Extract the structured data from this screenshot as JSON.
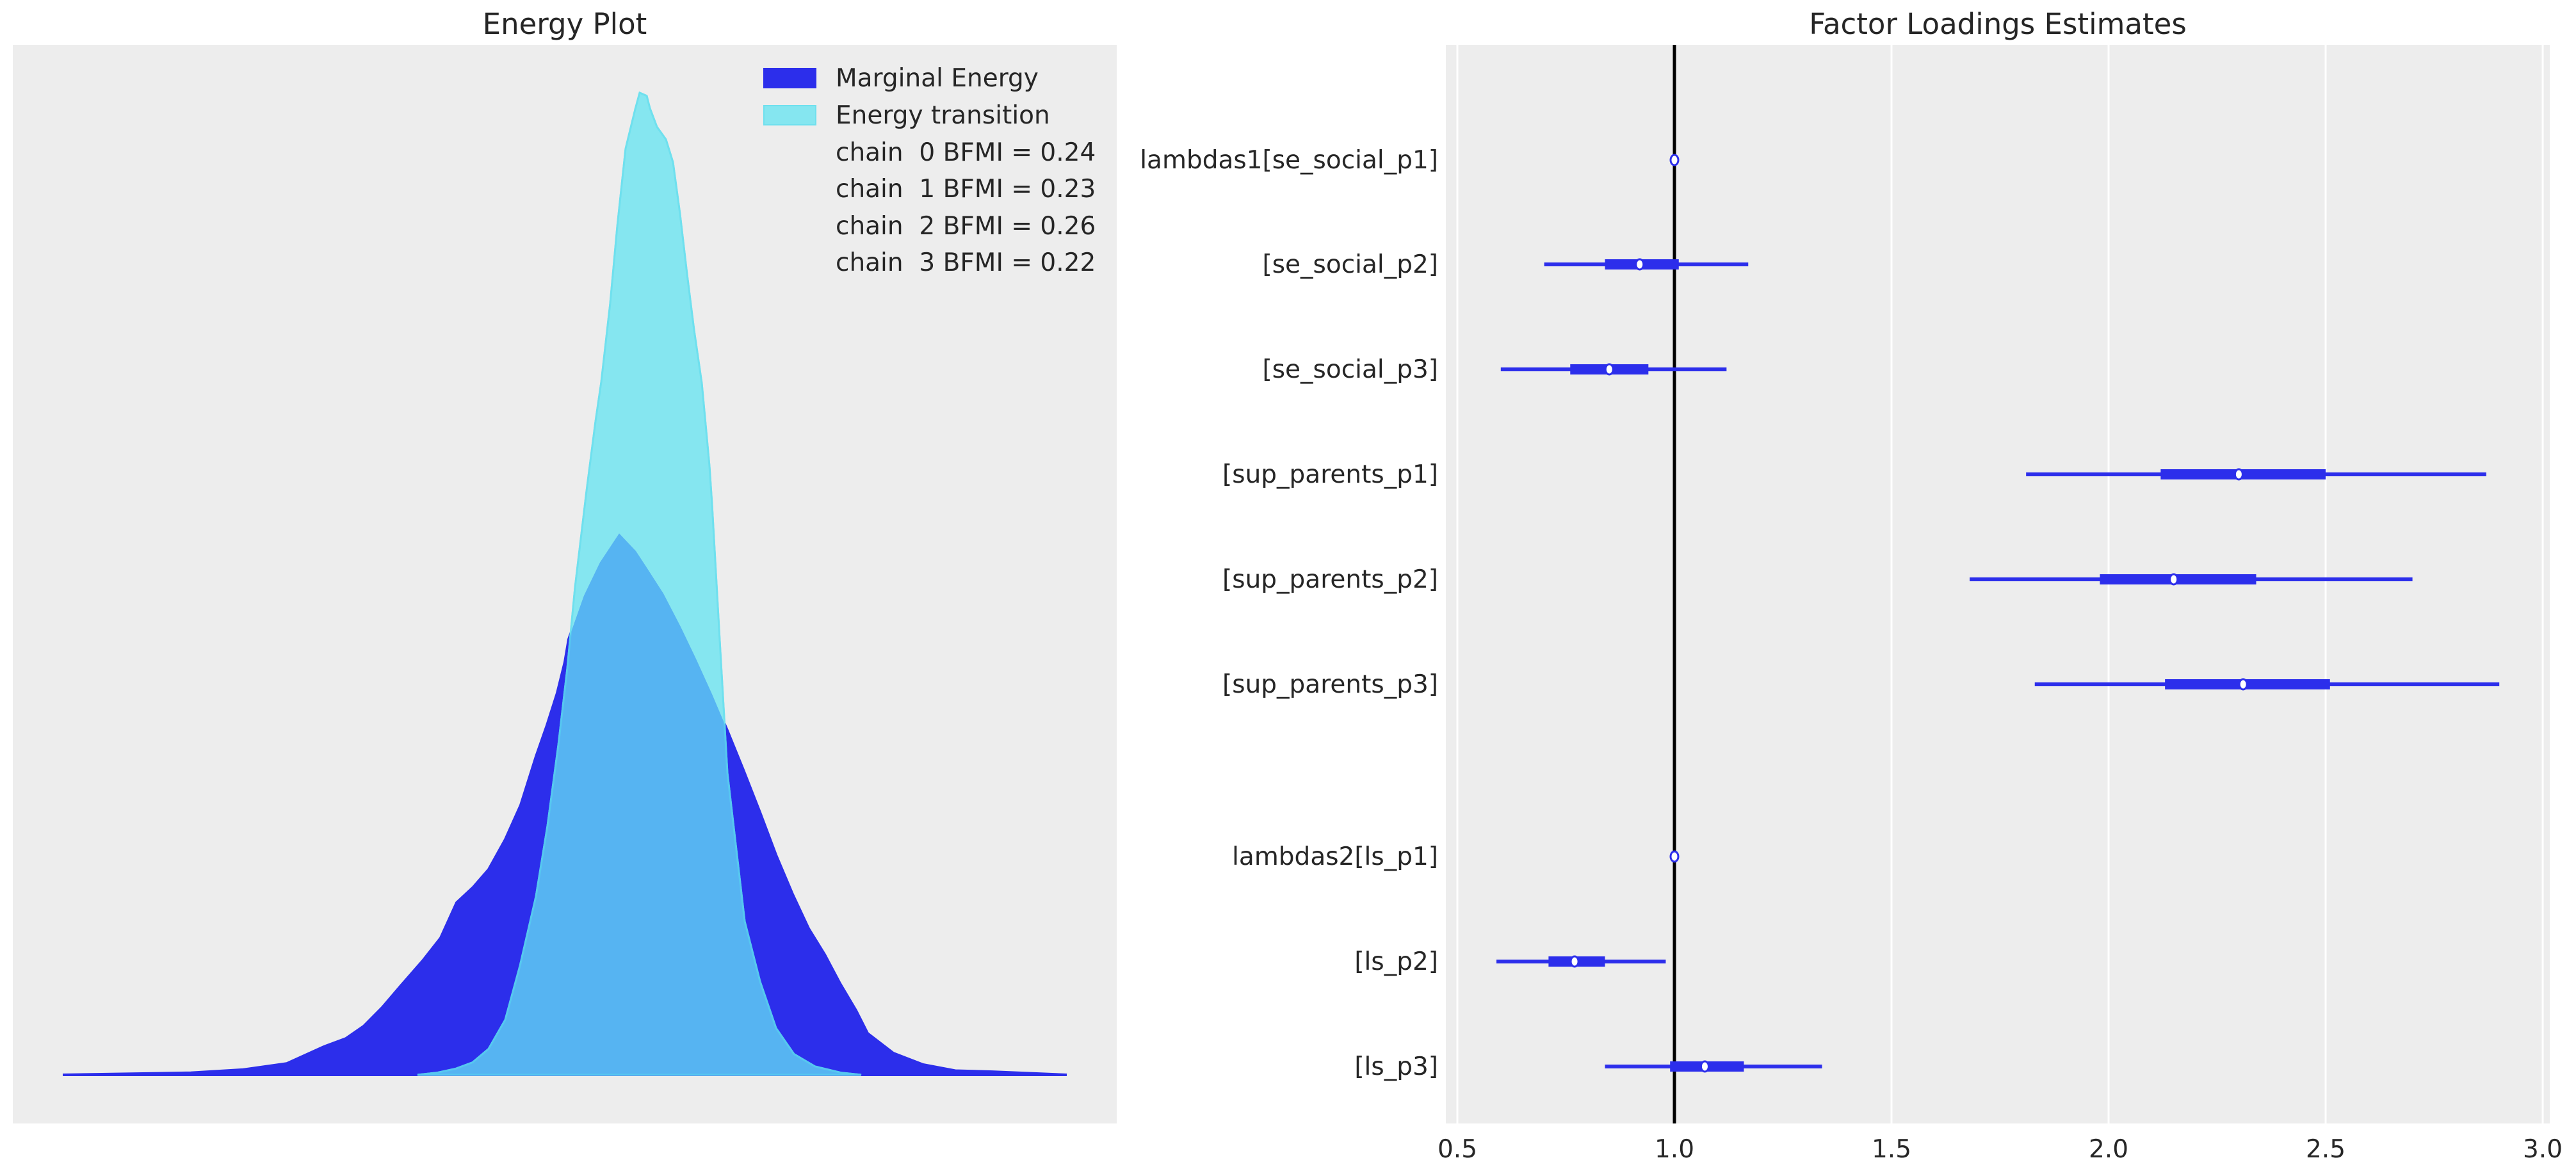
{
  "figure": {
    "background": "#ffffff",
    "axes_background": "#ededed",
    "grid_color": "#ffffff",
    "text_color": "#262626"
  },
  "chart_data": [
    {
      "type": "area",
      "title": "Energy Plot",
      "xlabel": "",
      "ylabel": "",
      "x_axis_visible": false,
      "y_axis_visible": false,
      "grid": false,
      "legend_placement": "top-right",
      "x_units": "energy (centered, arbitrary units)",
      "y_units": "density (relative to transition peak)",
      "series": [
        {
          "name": "Marginal Energy",
          "color": "#2c2eeb",
          "points": [
            [
              -8.84,
              0.0
            ],
            [
              -6.84,
              0.002
            ],
            [
              -6.03,
              0.005
            ],
            [
              -5.34,
              0.011
            ],
            [
              -4.77,
              0.027
            ],
            [
              -4.42,
              0.035
            ],
            [
              -4.14,
              0.047
            ],
            [
              -3.85,
              0.065
            ],
            [
              -3.56,
              0.086
            ],
            [
              -3.22,
              0.11
            ],
            [
              -2.94,
              0.132
            ],
            [
              -2.69,
              0.166
            ],
            [
              -2.43,
              0.181
            ],
            [
              -2.19,
              0.198
            ],
            [
              -1.93,
              0.227
            ],
            [
              -1.69,
              0.26
            ],
            [
              -1.45,
              0.307
            ],
            [
              -1.28,
              0.337
            ],
            [
              -1.12,
              0.368
            ],
            [
              -1.0,
              0.398
            ],
            [
              -0.94,
              0.42
            ],
            [
              -0.7,
              0.462
            ],
            [
              -0.45,
              0.494
            ],
            [
              -0.15,
              0.522
            ],
            [
              0.11,
              0.505
            ],
            [
              0.27,
              0.49
            ],
            [
              0.54,
              0.464
            ],
            [
              0.81,
              0.432
            ],
            [
              1.05,
              0.401
            ],
            [
              1.3,
              0.367
            ],
            [
              1.54,
              0.332
            ],
            [
              1.79,
              0.294
            ],
            [
              2.05,
              0.253
            ],
            [
              2.3,
              0.212
            ],
            [
              2.56,
              0.174
            ],
            [
              2.81,
              0.141
            ],
            [
              3.06,
              0.116
            ],
            [
              3.3,
              0.088
            ],
            [
              3.55,
              0.062
            ],
            [
              3.73,
              0.04
            ],
            [
              4.13,
              0.021
            ],
            [
              4.59,
              0.01
            ],
            [
              5.1,
              0.004
            ],
            [
              5.68,
              0.003
            ],
            [
              6.84,
              0.0
            ]
          ]
        },
        {
          "name": "Energy transition",
          "color": "#85e6f0",
          "points": [
            [
              -3.3,
              0.0
            ],
            [
              -3.0,
              0.002
            ],
            [
              -2.7,
              0.006
            ],
            [
              -2.44,
              0.012
            ],
            [
              -2.19,
              0.025
            ],
            [
              -1.93,
              0.053
            ],
            [
              -1.7,
              0.105
            ],
            [
              -1.45,
              0.172
            ],
            [
              -1.27,
              0.24
            ],
            [
              -1.1,
              0.318
            ],
            [
              -0.96,
              0.392
            ],
            [
              -0.84,
              0.47
            ],
            [
              -0.66,
              0.563
            ],
            [
              -0.52,
              0.63
            ],
            [
              -0.43,
              0.668
            ],
            [
              -0.29,
              0.744
            ],
            [
              -0.18,
              0.818
            ],
            [
              -0.05,
              0.893
            ],
            [
              0.1,
              0.931
            ],
            [
              0.17,
              0.947
            ],
            [
              0.28,
              0.944
            ],
            [
              0.33,
              0.932
            ],
            [
              0.44,
              0.914
            ],
            [
              0.58,
              0.902
            ],
            [
              0.69,
              0.88
            ],
            [
              0.8,
              0.83
            ],
            [
              0.91,
              0.772
            ],
            [
              1.02,
              0.718
            ],
            [
              1.14,
              0.667
            ],
            [
              1.26,
              0.587
            ],
            [
              1.3,
              0.55
            ],
            [
              1.42,
              0.419
            ],
            [
              1.54,
              0.291
            ],
            [
              1.81,
              0.148
            ],
            [
              2.05,
              0.09
            ],
            [
              2.3,
              0.045
            ],
            [
              2.58,
              0.02
            ],
            [
              2.91,
              0.008
            ],
            [
              3.32,
              0.002
            ],
            [
              3.63,
              0.0
            ]
          ]
        }
      ],
      "overlap_color": "#56b4f2",
      "legend": {
        "entries": [
          {
            "label": "Marginal Energy",
            "color": "#2c2eeb"
          },
          {
            "label": "Energy transition",
            "color": "#85e6f0"
          }
        ],
        "bfmi": [
          {
            "chain": 0,
            "label": "chain  0 BFMI = 0.24",
            "value": 0.24
          },
          {
            "chain": 1,
            "label": "chain  1 BFMI = 0.23",
            "value": 0.23
          },
          {
            "chain": 2,
            "label": "chain  2 BFMI = 0.26",
            "value": 0.26
          },
          {
            "chain": 3,
            "label": "chain  3 BFMI = 0.22",
            "value": 0.22
          }
        ]
      }
    },
    {
      "type": "forest",
      "title": "Factor Loadings Estimates",
      "xlabel": "",
      "ylabel": "",
      "xlim": [
        0.47,
        3.03
      ],
      "xticks": [
        0.5,
        1.0,
        1.5,
        2.0,
        2.5,
        3.0
      ],
      "xtick_labels": [
        "0.5",
        "1.0",
        "1.5",
        "2.0",
        "2.5",
        "3.0"
      ],
      "grid": true,
      "reference_line": 1.0,
      "reference_color": "#000000",
      "color": "#2c2eeb",
      "rows": [
        {
          "label": "lambdas1[se_social_p1]",
          "group": 1,
          "median": 1.0,
          "hdi_low": 1.0,
          "hdi_high": 1.0,
          "iqr_low": 1.0,
          "iqr_high": 1.0
        },
        {
          "label": "[se_social_p2]",
          "group": 1,
          "median": 0.92,
          "hdi_low": 0.7,
          "hdi_high": 1.17,
          "iqr_low": 0.84,
          "iqr_high": 1.01
        },
        {
          "label": "[se_social_p3]",
          "group": 1,
          "median": 0.85,
          "hdi_low": 0.6,
          "hdi_high": 1.12,
          "iqr_low": 0.76,
          "iqr_high": 0.94
        },
        {
          "label": "[sup_parents_p1]",
          "group": 1,
          "median": 2.3,
          "hdi_low": 1.81,
          "hdi_high": 2.87,
          "iqr_low": 2.12,
          "iqr_high": 2.5
        },
        {
          "label": "[sup_parents_p2]",
          "group": 1,
          "median": 2.15,
          "hdi_low": 1.68,
          "hdi_high": 2.7,
          "iqr_low": 1.98,
          "iqr_high": 2.34
        },
        {
          "label": "[sup_parents_p3]",
          "group": 1,
          "median": 2.31,
          "hdi_low": 1.83,
          "hdi_high": 2.9,
          "iqr_low": 2.13,
          "iqr_high": 2.51
        },
        {
          "label": "lambdas2[ls_p1]",
          "group": 2,
          "median": 1.0,
          "hdi_low": 1.0,
          "hdi_high": 1.0,
          "iqr_low": 1.0,
          "iqr_high": 1.0
        },
        {
          "label": "[ls_p2]",
          "group": 2,
          "median": 0.77,
          "hdi_low": 0.59,
          "hdi_high": 0.98,
          "iqr_low": 0.71,
          "iqr_high": 0.84
        },
        {
          "label": "[ls_p3]",
          "group": 2,
          "median": 1.07,
          "hdi_low": 0.84,
          "hdi_high": 1.34,
          "iqr_low": 0.99,
          "iqr_high": 1.16
        }
      ]
    }
  ]
}
